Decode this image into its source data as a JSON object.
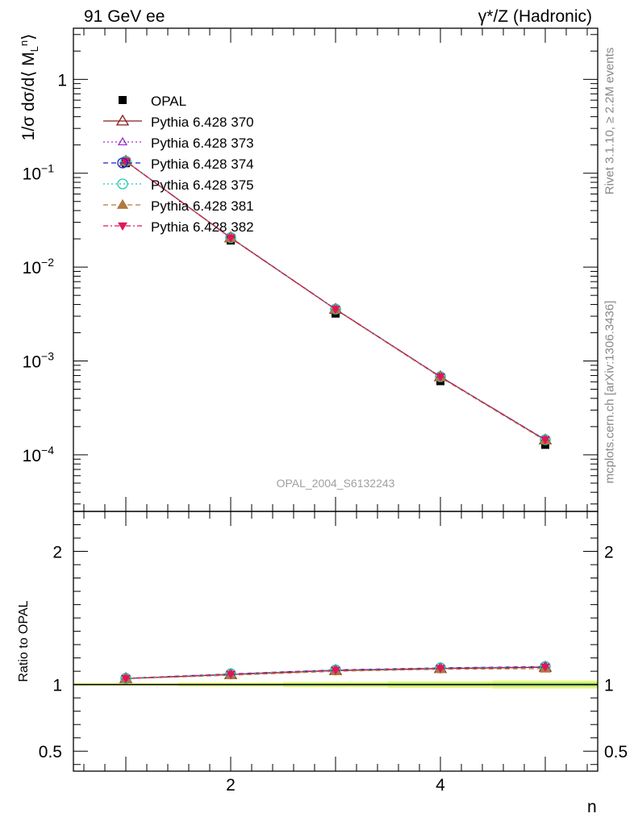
{
  "header": {
    "left": "91 GeV ee",
    "right": "γ*/Z (Hadronic)"
  },
  "side_text": {
    "rivet": "Rivet 3.1.10, ≥ 2.2M events",
    "mcplots": "mcplots.cern.ch [arXiv:1306.3436]"
  },
  "analysis_label": "OPAL_2004_S6132243",
  "chart_data": [
    {
      "type": "line",
      "panel": "main",
      "ylabel": "1/σ dσ/d⟨ M_L^n⟩",
      "yscale": "log",
      "xlim": [
        0.5,
        5.5
      ],
      "ylim": [
        2.5e-05,
        3.5
      ],
      "yticks": [
        {
          "value": 1,
          "label": "1"
        },
        {
          "value": 0.1,
          "label": "10^-1"
        },
        {
          "value": 0.01,
          "label": "10^-2"
        },
        {
          "value": 0.001,
          "label": "10^-3"
        },
        {
          "value": 0.0001,
          "label": "10^-4"
        }
      ],
      "x": [
        1,
        2,
        3,
        4,
        5
      ],
      "data": {
        "name": "OPAL",
        "values": [
          0.128,
          0.0192,
          0.0032,
          0.00061,
          0.000128
        ]
      },
      "series": [
        {
          "name": "Pythia 6.428 370",
          "color": "#8b1a1a",
          "values": [
            0.134,
            0.0205,
            0.00355,
            0.00068,
            0.000144
          ]
        },
        {
          "name": "Pythia 6.428 373",
          "color": "#9932cc",
          "values": [
            0.134,
            0.0205,
            0.00356,
            0.00068,
            0.000145
          ]
        },
        {
          "name": "Pythia 6.428 374",
          "color": "#1f1fcc",
          "values": [
            0.134,
            0.0206,
            0.00357,
            0.00068,
            0.000145
          ]
        },
        {
          "name": "Pythia 6.428 375",
          "color": "#20c8b4",
          "values": [
            0.134,
            0.0206,
            0.00357,
            0.00068,
            0.000145
          ]
        },
        {
          "name": "Pythia 6.428 381",
          "color": "#b07840",
          "values": [
            0.134,
            0.0204,
            0.00354,
            0.00067,
            0.000142
          ]
        },
        {
          "name": "Pythia 6.428 382",
          "color": "#e0165a",
          "values": [
            0.134,
            0.0205,
            0.00356,
            0.00068,
            0.000145
          ]
        }
      ]
    },
    {
      "type": "line",
      "panel": "ratio",
      "ylabel": "Ratio to OPAL",
      "xlabel": "n",
      "ylim": [
        0.35,
        2.3
      ],
      "yticks": [
        0.5,
        1,
        2
      ],
      "ytick_labels": [
        "0.5",
        "1",
        "2"
      ],
      "xticks": [
        2,
        4
      ],
      "xtick_labels": [
        "2",
        "4"
      ],
      "x": [
        1,
        2,
        3,
        4,
        5
      ],
      "band": {
        "lower": [
          0.99,
          0.985,
          0.98,
          0.975,
          0.97
        ],
        "upper": [
          1.01,
          1.015,
          1.02,
          1.025,
          1.03
        ]
      },
      "series": [
        {
          "name": "Pythia 6.428 370",
          "values": [
            1.045,
            1.075,
            1.105,
            1.12,
            1.13
          ]
        },
        {
          "name": "Pythia 6.428 373",
          "values": [
            1.046,
            1.078,
            1.107,
            1.123,
            1.133
          ]
        },
        {
          "name": "Pythia 6.428 374",
          "values": [
            1.047,
            1.08,
            1.11,
            1.125,
            1.135
          ]
        },
        {
          "name": "Pythia 6.428 375",
          "values": [
            1.047,
            1.08,
            1.11,
            1.125,
            1.135
          ]
        },
        {
          "name": "Pythia 6.428 381",
          "values": [
            1.044,
            1.07,
            1.1,
            1.115,
            1.12
          ]
        },
        {
          "name": "Pythia 6.428 382",
          "values": [
            1.046,
            1.078,
            1.108,
            1.122,
            1.132
          ]
        }
      ]
    }
  ]
}
